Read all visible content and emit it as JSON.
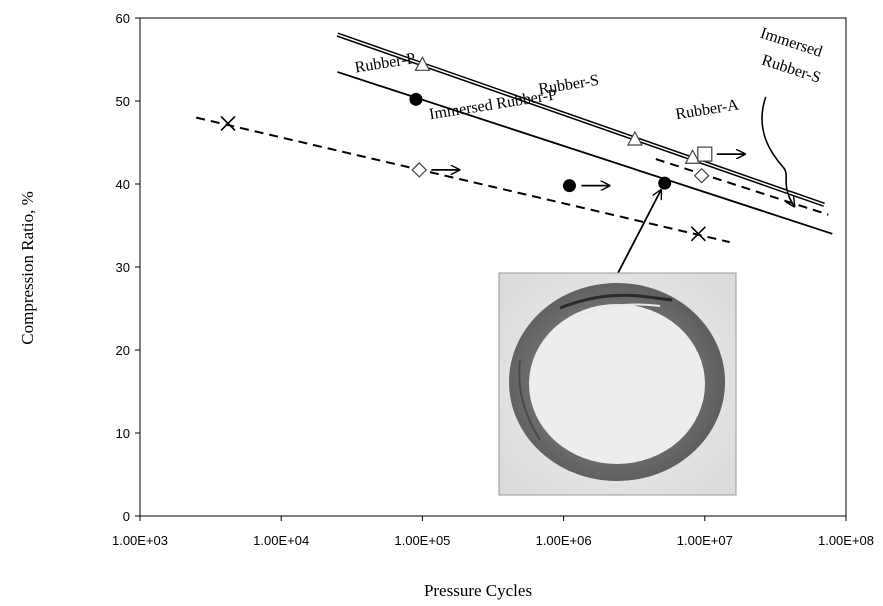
{
  "chart_data": {
    "type": "scatter",
    "title": "",
    "xlabel": "Pressure Cycles",
    "ylabel": "Compression Ratio, %",
    "x_scale": "log",
    "xlim": [
      1000,
      100000000
    ],
    "ylim": [
      0,
      60
    ],
    "x_ticks": [
      "1.00E+03",
      "1.00E+04",
      "1.00E+05",
      "1.00E+06",
      "1.00E+07",
      "1.00E+08"
    ],
    "y_ticks": [
      "0",
      "10",
      "20",
      "30",
      "40",
      "50",
      "60"
    ],
    "grid": false,
    "legend": "none",
    "series": [
      {
        "name": "Rubber-S",
        "marker": "triangle",
        "line_style": "double-solid",
        "points": [
          [
            100000,
            54.3
          ],
          [
            3200000,
            45.3
          ],
          [
            8200000,
            43.1
          ]
        ],
        "fit_line": [
          [
            25000,
            58.0
          ],
          [
            70000000,
            37.5
          ]
        ]
      },
      {
        "name": "Rubber-P",
        "marker": "filled-circle",
        "line_style": "solid",
        "points": [
          [
            90000,
            50.2
          ],
          [
            1100000,
            39.8
          ],
          [
            5200000,
            40.1
          ]
        ],
        "runout_points": [
          [
            1100000,
            39.8
          ]
        ],
        "fit_line": [
          [
            25000,
            53.5
          ],
          [
            80000000,
            34.0
          ]
        ]
      },
      {
        "name": "Rubber-A",
        "marker": "square",
        "line_style": "none",
        "points": [
          [
            10000000,
            43.6
          ]
        ],
        "runout_points": [
          [
            10000000,
            43.6
          ]
        ]
      },
      {
        "name": "Immersed Rubber-S",
        "marker": "diamond",
        "line_style": "dashed",
        "points": [
          [
            9500000,
            41.0
          ]
        ],
        "fit_line": [
          [
            4500000,
            43.0
          ],
          [
            75000000,
            36.3
          ]
        ]
      },
      {
        "name": "Immersed Rubber-P",
        "marker": "x",
        "line_style": "dashed",
        "points": [
          [
            4200,
            47.3
          ],
          [
            9000000,
            34.0
          ]
        ],
        "fit_line": [
          [
            2500,
            48.0
          ],
          [
            15000000,
            33.0
          ]
        ]
      },
      {
        "name": "",
        "marker": "diamond",
        "line_style": "none",
        "points": [
          [
            95000,
            41.7
          ]
        ],
        "runout_points": [
          [
            95000,
            41.7
          ]
        ]
      }
    ],
    "labels": [
      {
        "text": "Rubber-P",
        "x": 55000,
        "y": 54.0
      },
      {
        "text": "Rubber-S",
        "x": 1100000,
        "y": 51.4
      },
      {
        "text": "Rubber-A",
        "x": 10500000,
        "y": 48.4
      },
      {
        "text": "Immersed Rubber-P",
        "x": 320000,
        "y": 49.0
      },
      {
        "text": "Immersed",
        "x": 40000000,
        "y": 56.5
      },
      {
        "text": "Rubber-S",
        "x": 40000000,
        "y": 53.3
      }
    ],
    "inset_photo": "fractured-o-ring-photo"
  }
}
